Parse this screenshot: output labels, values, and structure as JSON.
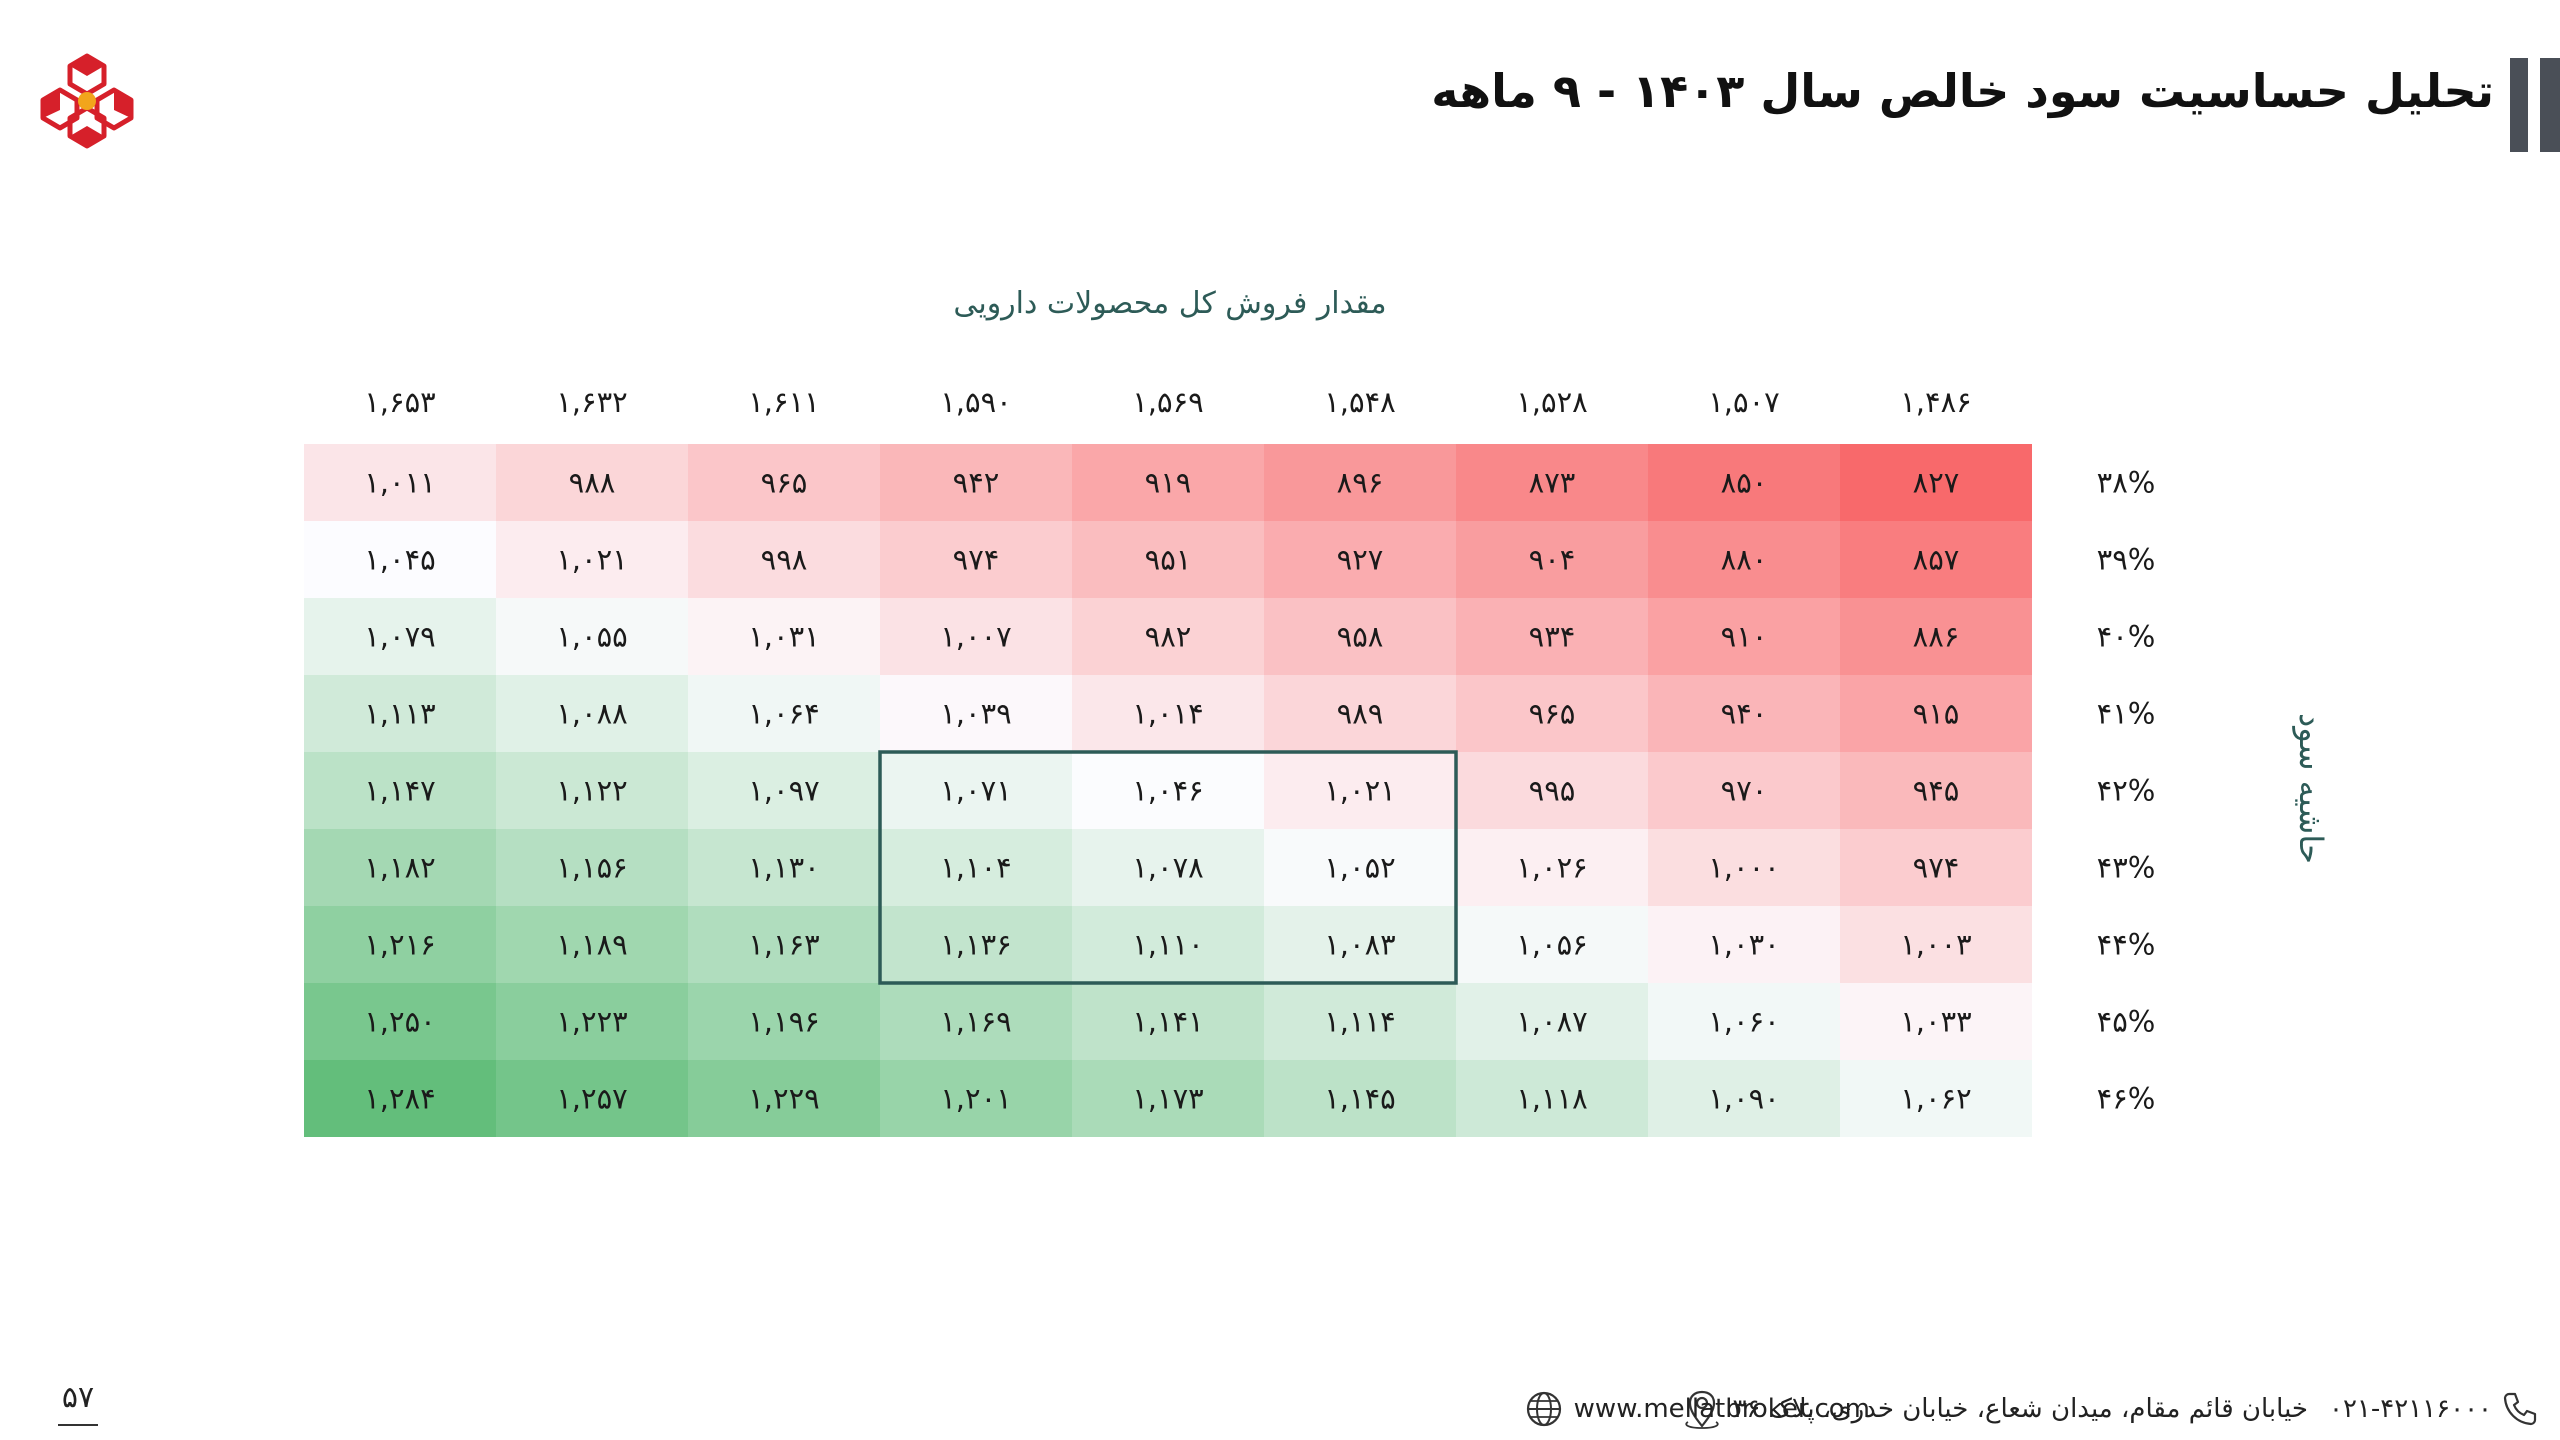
{
  "header": {
    "title": "تحلیل حساسیت سود خالص سال ۱۴۰۳ - ۹ ماهه"
  },
  "chart_data": {
    "type": "heatmap",
    "title": "تحلیل حساسیت سود خالص سال ۱۴۰۳ - ۹ ماهه",
    "xlabel": "مقدار فروش کل محصولات دارویی",
    "ylabel": "حاشیه سود",
    "x_categories": [
      "۱,۶۵۳",
      "۱,۶۳۲",
      "۱,۶۱۱",
      "۱,۵۹۰",
      "۱,۵۶۹",
      "۱,۵۴۸",
      "۱,۵۲۸",
      "۱,۵۰۷",
      "۱,۴۸۶"
    ],
    "x_values": [
      1653,
      1632,
      1611,
      1590,
      1569,
      1548,
      1528,
      1507,
      1486
    ],
    "y_categories": [
      "۳۸%",
      "۳۹%",
      "۴۰%",
      "۴۱%",
      "۴۲%",
      "۴۳%",
      "۴۴%",
      "۴۵%",
      "۴۶%"
    ],
    "y_values": [
      38,
      39,
      40,
      41,
      42,
      43,
      44,
      45,
      46
    ],
    "cell_labels": [
      [
        "۱,۰۱۱",
        "۹۸۸",
        "۹۶۵",
        "۹۴۲",
        "۹۱۹",
        "۸۹۶",
        "۸۷۳",
        "۸۵۰",
        "۸۲۷"
      ],
      [
        "۱,۰۴۵",
        "۱,۰۲۱",
        "۹۹۸",
        "۹۷۴",
        "۹۵۱",
        "۹۲۷",
        "۹۰۴",
        "۸۸۰",
        "۸۵۷"
      ],
      [
        "۱,۰۷۹",
        "۱,۰۵۵",
        "۱,۰۳۱",
        "۱,۰۰۷",
        "۹۸۲",
        "۹۵۸",
        "۹۳۴",
        "۹۱۰",
        "۸۸۶"
      ],
      [
        "۱,۱۱۳",
        "۱,۰۸۸",
        "۱,۰۶۴",
        "۱,۰۳۹",
        "۱,۰۱۴",
        "۹۸۹",
        "۹۶۵",
        "۹۴۰",
        "۹۱۵"
      ],
      [
        "۱,۱۴۷",
        "۱,۱۲۲",
        "۱,۰۹۷",
        "۱,۰۷۱",
        "۱,۰۴۶",
        "۱,۰۲۱",
        "۹۹۵",
        "۹۷۰",
        "۹۴۵"
      ],
      [
        "۱,۱۸۲",
        "۱,۱۵۶",
        "۱,۱۳۰",
        "۱,۱۰۴",
        "۱,۰۷۸",
        "۱,۰۵۲",
        "۱,۰۲۶",
        "۱,۰۰۰",
        "۹۷۴"
      ],
      [
        "۱,۲۱۶",
        "۱,۱۸۹",
        "۱,۱۶۳",
        "۱,۱۳۶",
        "۱,۱۱۰",
        "۱,۰۸۳",
        "۱,۰۵۶",
        "۱,۰۳۰",
        "۱,۰۰۳"
      ],
      [
        "۱,۲۵۰",
        "۱,۲۲۳",
        "۱,۱۹۶",
        "۱,۱۶۹",
        "۱,۱۴۱",
        "۱,۱۱۴",
        "۱,۰۸۷",
        "۱,۰۶۰",
        "۱,۰۳۳"
      ],
      [
        "۱,۲۸۴",
        "۱,۲۵۷",
        "۱,۲۲۹",
        "۱,۲۰۱",
        "۱,۱۷۳",
        "۱,۱۴۵",
        "۱,۱۱۸",
        "۱,۰۹۰",
        "۱,۰۶۲"
      ]
    ],
    "values": [
      [
        1011,
        988,
        965,
        942,
        919,
        896,
        873,
        850,
        827
      ],
      [
        1045,
        1021,
        998,
        974,
        951,
        927,
        904,
        880,
        857
      ],
      [
        1079,
        1055,
        1031,
        1007,
        982,
        958,
        934,
        910,
        886
      ],
      [
        1113,
        1088,
        1064,
        1039,
        1014,
        989,
        965,
        940,
        915
      ],
      [
        1147,
        1122,
        1097,
        1071,
        1046,
        1021,
        995,
        970,
        945
      ],
      [
        1182,
        1156,
        1130,
        1104,
        1078,
        1052,
        1026,
        1000,
        974
      ],
      [
        1216,
        1189,
        1163,
        1136,
        1110,
        1083,
        1056,
        1030,
        1003
      ],
      [
        1250,
        1223,
        1196,
        1169,
        1141,
        1114,
        1087,
        1060,
        1033
      ],
      [
        1284,
        1257,
        1229,
        1201,
        1173,
        1145,
        1118,
        1090,
        1062
      ]
    ],
    "highlight": {
      "rows": [
        4,
        6
      ],
      "cols": [
        3,
        5
      ]
    },
    "colors": {
      "low": "#f8696b",
      "mid": "#fcfcff",
      "high": "#63be7b",
      "highlight_border": "#2d5b57"
    },
    "legend": "none",
    "grid": false
  },
  "footer": {
    "phone": "۰۲۱-۴۲۱۱۶۰۰۰",
    "address": "خیابان قائم مقام، میدان شعاع، خیابان خدری، پلاک ۳۶",
    "website": "www.mellatbroker.com",
    "page_number": "۵۷"
  },
  "icons": {
    "logo": "mellat-broker-logo",
    "phone": "phone-icon",
    "address": "location-pin-icon",
    "website": "globe-icon"
  }
}
